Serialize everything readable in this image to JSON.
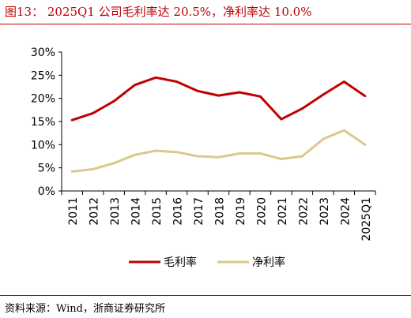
{
  "header": {
    "title": "图13：  2025Q1 公司毛利率达 20.5%，净利率达 10.0%"
  },
  "footer": {
    "source": "资料来源：Wind，浙商证券研究所"
  },
  "colors": {
    "accent": "#c00000",
    "series_gross": "#c00000",
    "series_net": "#dcc88a"
  },
  "chart_data": {
    "type": "line",
    "categories": [
      "2011",
      "2012",
      "2013",
      "2014",
      "2015",
      "2016",
      "2017",
      "2018",
      "2019",
      "2020",
      "2021",
      "2022",
      "2023",
      "2024",
      "2025Q1"
    ],
    "series": [
      {
        "name": "毛利率",
        "values": [
          15.3,
          16.8,
          19.4,
          22.9,
          24.5,
          23.6,
          21.6,
          20.6,
          21.3,
          20.4,
          15.5,
          17.8,
          20.8,
          23.6,
          20.5
        ]
      },
      {
        "name": "净利率",
        "values": [
          4.2,
          4.7,
          6.0,
          7.8,
          8.7,
          8.4,
          7.5,
          7.3,
          8.1,
          8.1,
          6.9,
          7.5,
          11.2,
          13.1,
          10.0
        ]
      }
    ],
    "y_ticks": [
      "0%",
      "5%",
      "10%",
      "15%",
      "20%",
      "25%",
      "30%"
    ],
    "ylim": [
      0,
      30
    ],
    "grid": false,
    "legend_position": "bottom"
  }
}
